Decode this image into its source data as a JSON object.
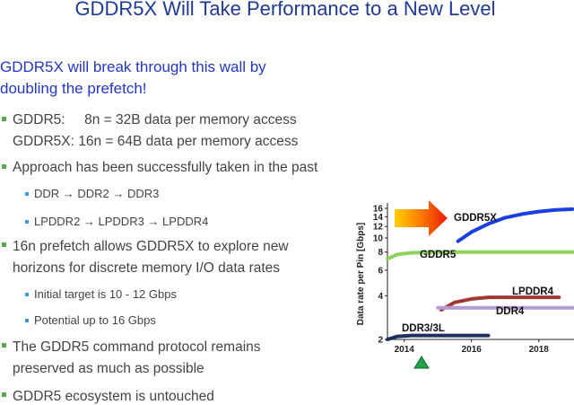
{
  "title": "GDDR5X Will Take Performance to a New Level",
  "subtitle": [
    "GDDR5X will break through this wall by",
    "doubling the prefetch!"
  ],
  "bullets": [
    {
      "lines": [
        "GDDR5:     8n = 32B data per memory access",
        "GDDR5X: 16n = 64B data per memory access"
      ]
    },
    {
      "lines": [
        "Approach has been successfully taken in the past"
      ],
      "sub": [
        "DDR → DDR2 → DDR3",
        "LPDDR2 → LPDDR3 → LPDDR4"
      ]
    },
    {
      "lines": [
        "16n prefetch allows GDDR5X to explore new",
        "horizons for discrete memory I/O data rates"
      ],
      "sub": [
        "Initial target is 10 - 12 Gbps",
        "Potential up to 16 Gbps"
      ]
    },
    {
      "lines": [
        "The GDDR5 command protocol remains",
        "preserved as much as possible"
      ]
    },
    {
      "lines": [
        "GDDR5 ecosystem is untouched"
      ]
    }
  ],
  "chart_data": {
    "type": "line",
    "y_label": "Data rate per Pin [Gbps]",
    "y_scale": "log",
    "xlim": [
      2013.5,
      2019.1
    ],
    "xticks": [
      2014,
      2016,
      2018
    ],
    "ylim": [
      2,
      16
    ],
    "yticks": [
      2,
      4,
      6,
      8,
      10,
      12,
      14,
      16
    ],
    "series": [
      {
        "name": "GDDR5X",
        "color": "#1a3fe0",
        "x": [
          2015.6,
          2016.0,
          2016.5,
          2017.0,
          2017.5,
          2018.0,
          2018.5,
          2019.0
        ],
        "values": [
          9.5,
          11.0,
          12.5,
          13.8,
          14.6,
          15.2,
          15.6,
          15.8
        ]
      },
      {
        "name": "GDDR5",
        "color": "#8ed35a",
        "x": [
          2013.5,
          2013.8,
          2014.2,
          2015.0,
          2017.0,
          2019.1
        ],
        "values": [
          7.2,
          7.7,
          7.9,
          8,
          8,
          8
        ]
      },
      {
        "name": "LPDDR4",
        "color": "#a03a30",
        "x": [
          2015.1,
          2015.5,
          2016.0,
          2016.5,
          2017.5,
          2018.6
        ],
        "values": [
          3.2,
          3.6,
          3.8,
          3.9,
          3.9,
          3.9
        ]
      },
      {
        "name": "DDR4",
        "color": "#b89ad6",
        "x": [
          2015.0,
          2016.0,
          2017.0,
          2018.0,
          2019.1
        ],
        "values": [
          3.3,
          3.3,
          3.3,
          3.3,
          3.3
        ]
      },
      {
        "name": "DDR3/3L",
        "color": "#1f3060",
        "x": [
          2013.5,
          2013.8,
          2014.2,
          2015.0,
          2016.5
        ],
        "values": [
          2.0,
          2.1,
          2.13,
          2.13,
          2.13
        ]
      }
    ]
  }
}
